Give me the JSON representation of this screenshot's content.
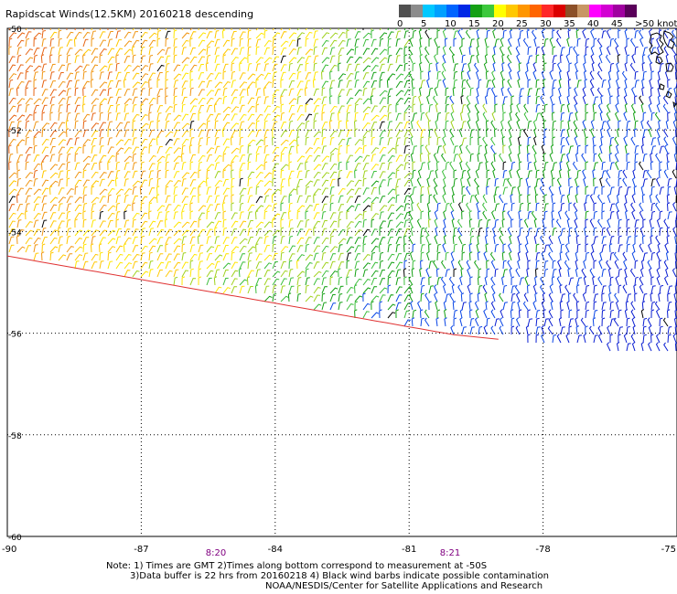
{
  "title": "Rapidscat Winds(12.5KM) 20160218 descending",
  "colorbar": {
    "colors": [
      "#505050",
      "#8c8c8c",
      "#00c8ff",
      "#00a0ff",
      "#0064ff",
      "#0028e6",
      "#14a014",
      "#3cc83c",
      "#ffff00",
      "#ffc800",
      "#ff9600",
      "#ff6400",
      "#ff2828",
      "#dc0000",
      "#8c5028",
      "#c89664",
      "#ff00ff",
      "#d200d2",
      "#a000a0",
      "#5a005a"
    ],
    "labels": [
      "0",
      "5",
      "10",
      "15",
      "20",
      "25",
      "30",
      "35",
      "40",
      "45",
      ">50 knots"
    ]
  },
  "map": {
    "lat_labels": [
      "-50",
      "-52",
      "-54",
      "-56",
      "-58",
      "-60"
    ],
    "lon_labels": [
      "-90",
      "-87",
      "-84",
      "-81",
      "-78",
      "-75"
    ],
    "time_labels": [
      "8:20",
      "8:21"
    ]
  },
  "notes": [
    "Note: 1) Times are GMT 2)Times along bottom correspond to measurement at -50S",
    "3)Data buffer is 22 hrs from 20160218 4) Black wind barbs indicate possible contamination",
    "NOAA/NESDIS/Center for Satellite Applications and Research"
  ],
  "chart_data": {
    "type": "map",
    "title": "Rapidscat Winds(12.5KM) 20160218 descending",
    "lat_range": [
      -60,
      -50
    ],
    "lon_range": [
      -90,
      -75
    ],
    "lat_ticks": [
      -50,
      -52,
      -54,
      -56,
      -58,
      -60
    ],
    "lon_ticks": [
      -90,
      -87,
      -84,
      -81,
      -78,
      -75
    ],
    "grid": true,
    "legend": "top-right",
    "wind_speed_scale_knots": [
      0,
      5,
      10,
      15,
      20,
      25,
      30,
      35,
      40,
      45,
      50
    ]
  }
}
